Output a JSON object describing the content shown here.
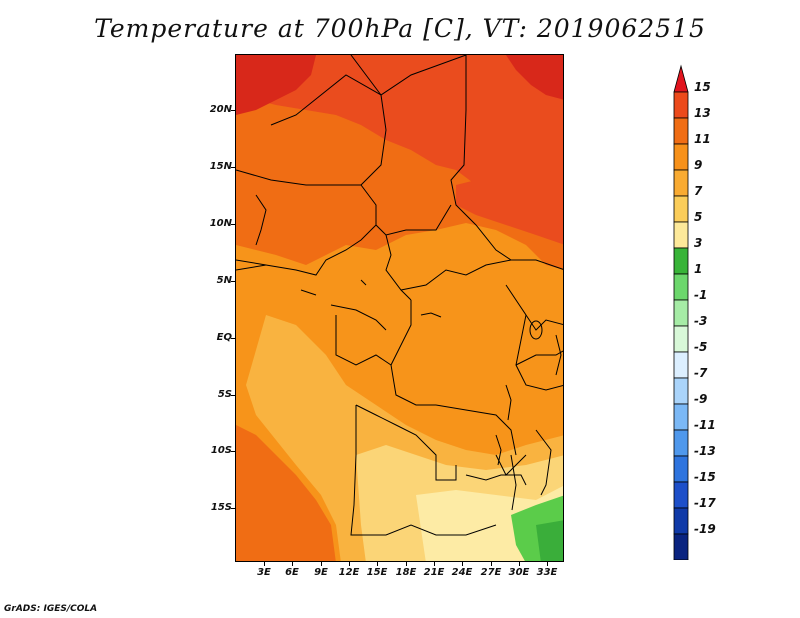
{
  "title": "Temperature at 700hPa [C], VT: 2019062515",
  "footer": "GrADS: IGES/COLA",
  "map": {
    "region": "Central Africa",
    "variable": "Temperature at 700hPa",
    "units": "C",
    "lat_labels": [
      "20N",
      "15N",
      "10N",
      "5N",
      "EQ",
      "5S",
      "10S",
      "15S"
    ],
    "lon_labels": [
      "3E",
      "6E",
      "9E",
      "12E",
      "15E",
      "18E",
      "21E",
      "24E",
      "27E",
      "30E",
      "33E"
    ]
  },
  "colorbar": {
    "labels": [
      "15",
      "13",
      "11",
      "9",
      "7",
      "5",
      "3",
      "1",
      "-1",
      "-3",
      "-5",
      "-7",
      "-9",
      "-11",
      "-13",
      "-15",
      "-17",
      "-19"
    ],
    "colors": [
      "#e1141e",
      "#ec4a1b",
      "#f06d14",
      "#f7911a",
      "#f9ab32",
      "#fbcd5a",
      "#fde99a",
      "#38b438",
      "#6cd76c",
      "#a6eca6",
      "#d8f8d8",
      "#dcefff",
      "#aad4fa",
      "#7bb8f5",
      "#4f98ec",
      "#2e74de",
      "#1d4fc9",
      "#103aa8",
      "#0a2480",
      "#000a58"
    ]
  },
  "field_colors": {
    "c15": "#d8281a",
    "c13": "#ea4c1e",
    "c11": "#f06d14",
    "c9": "#f7941a",
    "c7": "#f9b340",
    "c5": "#fbd577",
    "c3": "#fdeba5",
    "green1": "#5bcc4a",
    "green2": "#3aae3a"
  }
}
